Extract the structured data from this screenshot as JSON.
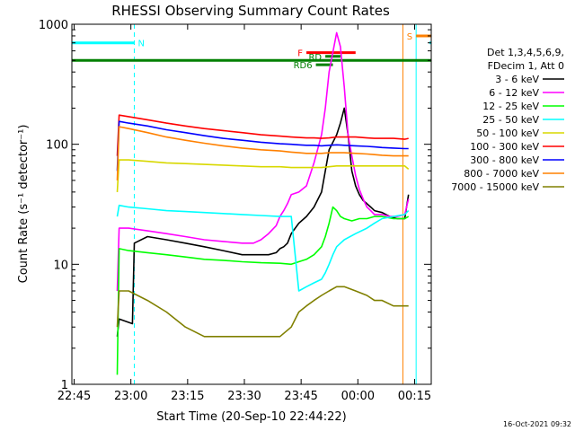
{
  "colors": {
    "background": "#ffffff",
    "axis": "#000000",
    "night_cyan": "#00ffff",
    "saa_orange": "#ff8000",
    "flare_red": "#ff0000",
    "green": "#008000"
  },
  "chart_data": {
    "type": "line",
    "title": "RHESSI Observing Summary Count Rates",
    "xlabel": "Start Time (20-Sep-10 22:44:22)",
    "ylabel": "Count Rate (s⁻¹ detector⁻¹)",
    "x_unit": "minutes after 22:44:22",
    "xlim": [
      0,
      95
    ],
    "ylim": [
      1,
      1000
    ],
    "log_y": true,
    "x_ticks": [
      "22:45",
      "23:00",
      "23:15",
      "23:30",
      "23:45",
      "00:00",
      "00:15"
    ],
    "y_ticks": [
      "1",
      "10",
      "100",
      "1000"
    ],
    "legend_header": [
      "Det 1,3,4,5,6,9,",
      "FDecim 1, Att 0"
    ],
    "legend_position": "right",
    "series": [
      {
        "name": "3 - 6 keV",
        "color": "#000000",
        "x": [
          12,
          12.5,
          16,
          16.5,
          20,
          25,
          30,
          35,
          40,
          45,
          47,
          50,
          52,
          54,
          55,
          56,
          57,
          58,
          60,
          62,
          64,
          66,
          67,
          68,
          70,
          71,
          72,
          73,
          74,
          75,
          76,
          77,
          78,
          79,
          80,
          82,
          84,
          86,
          88,
          89
        ],
        "y": [
          2.5,
          3.5,
          3.2,
          15,
          17,
          16,
          15,
          14,
          13,
          12,
          12,
          12,
          12,
          12.5,
          13.5,
          14,
          15,
          18,
          22,
          25,
          30,
          40,
          60,
          90,
          120,
          150,
          200,
          120,
          60,
          45,
          38,
          34,
          32,
          30,
          28,
          27,
          25,
          24,
          24,
          38
        ]
      },
      {
        "name": "6 - 12 keV",
        "color": "#ff00ff",
        "x": [
          12,
          12.5,
          15,
          20,
          25,
          30,
          35,
          40,
          45,
          48,
          50,
          52,
          54,
          55,
          56,
          57,
          58,
          60,
          62,
          64,
          66,
          67,
          68,
          70,
          71,
          72,
          73,
          74,
          75,
          76,
          77,
          78,
          79,
          80,
          82,
          84,
          86,
          88,
          89
        ],
        "y": [
          6,
          20,
          20,
          19,
          18,
          17,
          16,
          15.5,
          15,
          15,
          16,
          18,
          21,
          25,
          28,
          32,
          38,
          40,
          45,
          70,
          120,
          200,
          400,
          850,
          650,
          300,
          120,
          80,
          55,
          42,
          35,
          30,
          28,
          26,
          26,
          25,
          25,
          26,
          35
        ]
      },
      {
        "name": "12 - 25 keV",
        "color": "#00ff00",
        "x": [
          12,
          12.5,
          15,
          20,
          25,
          30,
          35,
          40,
          45,
          50,
          55,
          58,
          60,
          62,
          64,
          66,
          67,
          68,
          69,
          70,
          71,
          72,
          74,
          76,
          78,
          80,
          82,
          85,
          88,
          89
        ],
        "y": [
          1.2,
          13.5,
          13,
          12.5,
          12,
          11.5,
          11,
          10.8,
          10.5,
          10.3,
          10.2,
          10,
          10.5,
          11,
          12,
          14,
          17,
          22,
          30,
          28,
          25,
          24,
          23,
          24,
          24,
          25,
          25,
          24,
          24,
          25
        ]
      },
      {
        "name": "25 - 50 keV",
        "color": "#00ffff",
        "x": [
          12,
          12.5,
          15,
          20,
          25,
          30,
          35,
          40,
          45,
          50,
          55,
          58,
          60,
          62,
          64,
          66,
          67,
          68,
          69,
          70,
          72,
          75,
          78,
          80,
          82,
          85,
          88,
          89
        ],
        "y": [
          25,
          31,
          30,
          29,
          28,
          27.5,
          27,
          26.5,
          26,
          25.5,
          25,
          25,
          6,
          6.5,
          7,
          7.5,
          8.5,
          10,
          12,
          14,
          16,
          18,
          20,
          22,
          24,
          25,
          26,
          28
        ]
      },
      {
        "name": "50 - 100 keV",
        "color": "#d8d800",
        "x": [
          12,
          12.5,
          15,
          20,
          25,
          30,
          35,
          40,
          45,
          50,
          55,
          58,
          60,
          62,
          64,
          66,
          68,
          70,
          72,
          75,
          78,
          80,
          82,
          85,
          88,
          89
        ],
        "y": [
          40,
          74,
          74,
          72,
          70,
          69,
          68,
          67,
          66,
          65,
          65,
          64,
          64,
          64,
          64,
          64,
          65,
          66,
          66,
          66,
          66,
          66,
          66,
          66,
          66,
          62
        ]
      },
      {
        "name": "100 - 300 keV",
        "color": "#ff0000",
        "x": [
          12,
          12.5,
          15,
          20,
          25,
          30,
          35,
          40,
          45,
          50,
          55,
          58,
          60,
          62,
          64,
          66,
          68,
          70,
          72,
          75,
          78,
          80,
          82,
          85,
          88,
          89
        ],
        "y": [
          80,
          175,
          170,
          160,
          150,
          142,
          135,
          130,
          125,
          120,
          117,
          115,
          114,
          113,
          113,
          112,
          113,
          115,
          115,
          115,
          113,
          112,
          112,
          112,
          110,
          112
        ]
      },
      {
        "name": "300 - 800 keV",
        "color": "#0000ff",
        "x": [
          12,
          12.5,
          15,
          20,
          25,
          30,
          35,
          40,
          45,
          50,
          55,
          58,
          60,
          62,
          64,
          66,
          68,
          70,
          72,
          75,
          78,
          80,
          82,
          85,
          88,
          89
        ],
        "y": [
          60,
          155,
          150,
          142,
          132,
          125,
          118,
          112,
          108,
          104,
          101,
          100,
          99,
          98,
          98,
          97,
          98,
          99,
          98,
          97,
          96,
          95,
          94,
          93,
          92,
          92
        ]
      },
      {
        "name": "800 - 7000 keV",
        "color": "#ff8000",
        "x": [
          12,
          12.5,
          15,
          20,
          25,
          30,
          35,
          40,
          45,
          50,
          55,
          58,
          60,
          62,
          64,
          66,
          68,
          70,
          72,
          75,
          78,
          80,
          82,
          85,
          88,
          89
        ],
        "y": [
          50,
          140,
          135,
          125,
          115,
          108,
          102,
          97,
          93,
          90,
          88,
          86,
          85,
          84,
          84,
          84,
          85,
          85,
          85,
          84,
          83,
          82,
          81,
          80,
          80,
          80
        ]
      },
      {
        "name": "7000 - 15000 keV",
        "color": "#808000",
        "x": [
          12,
          12.5,
          15,
          20,
          25,
          30,
          35,
          40,
          45,
          50,
          55,
          58,
          60,
          62,
          64,
          66,
          68,
          70,
          72,
          75,
          78,
          80,
          82,
          85,
          88,
          89
        ],
        "y": [
          3,
          6,
          6,
          5,
          4,
          3,
          2.5,
          2.5,
          2.5,
          2.5,
          2.5,
          3,
          4,
          4.5,
          5,
          5.5,
          6,
          6.5,
          6.5,
          6,
          5.5,
          5,
          5,
          4.5,
          4.5,
          4.5
        ]
      }
    ],
    "annotations": {
      "flags": [
        {
          "label": "N",
          "color": "#00ffff",
          "x_start": 0,
          "x_end": 16.5,
          "y": 700
        },
        {
          "label": "S",
          "color": "#ff8000",
          "x_start": 91,
          "x_end": 106,
          "y": 800
        },
        {
          "label": "",
          "color": "#00ffff",
          "x_start": 94.5,
          "x_end": 106,
          "y": 700
        },
        {
          "label": "F",
          "color": "#ff0000",
          "x_start": 62,
          "x_end": 75,
          "y": 580
        },
        {
          "label": "RD",
          "color": "#008000",
          "x_start": 67,
          "x_end": 71,
          "y": 540
        },
        {
          "label": "RD6",
          "color": "#008000",
          "x_start": 64.5,
          "x_end": 69,
          "y": 460
        },
        {
          "label": "",
          "color": "#008000",
          "x_start": 0,
          "x_end": 106,
          "y": 500
        }
      ],
      "vertical_lines": [
        {
          "x": 0,
          "color": "#00ffff",
          "style": "solid"
        },
        {
          "x": 16.5,
          "color": "#00ffff",
          "style": "dashed"
        },
        {
          "x": 87.5,
          "color": "#ff8000",
          "style": "solid"
        },
        {
          "x": 91,
          "color": "#00ffff",
          "style": "solid"
        },
        {
          "x": 100.5,
          "color": "#ff8000",
          "style": "dashed"
        },
        {
          "x": 106,
          "color": "#00ffff",
          "style": "dashed"
        }
      ]
    },
    "footer_timestamp": "16-Oct-2021 09:32"
  }
}
